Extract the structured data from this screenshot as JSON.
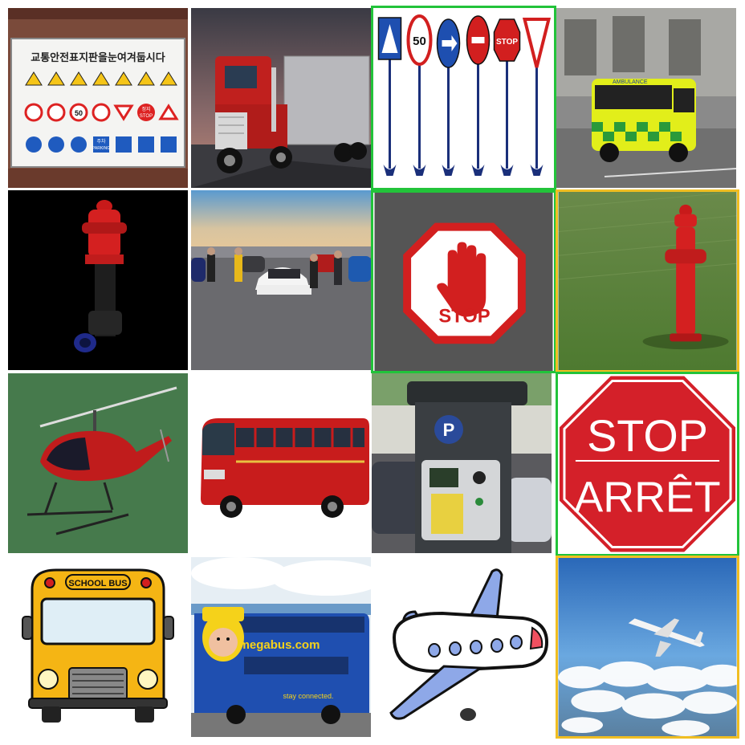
{
  "grid": {
    "rows": 4,
    "cols": 4,
    "selection_colors": {
      "green": "#22c33a",
      "yellow": "#f0be22"
    }
  },
  "tiles": [
    {
      "subject": "korean-traffic-sign-board",
      "selected": "none",
      "text": {
        "heading": "교통안전표지판을눈여겨둡시다",
        "speed": "50",
        "stop": "STOP",
        "stop_ko": "정지",
        "parking": "PARKING",
        "parking_ko": "주차"
      }
    },
    {
      "subject": "red-semi-truck",
      "selected": "none",
      "text": {}
    },
    {
      "subject": "road-sign-stakes",
      "selected": "green",
      "text": {
        "speed": "50",
        "stop": "STOP"
      }
    },
    {
      "subject": "ambulance",
      "selected": "none",
      "text": {
        "ambulance": "AMBULANCE"
      }
    },
    {
      "subject": "fire-hydrant-render",
      "selected": "none",
      "text": {}
    },
    {
      "subject": "people-with-cars",
      "selected": "none",
      "text": {}
    },
    {
      "subject": "hand-stop-sign",
      "selected": "green",
      "text": {
        "stop": "STOP"
      }
    },
    {
      "subject": "fire-hydrant-grass",
      "selected": "yellow",
      "text": {}
    },
    {
      "subject": "red-helicopter",
      "selected": "none",
      "text": {}
    },
    {
      "subject": "red-coach-bus",
      "selected": "none",
      "text": {}
    },
    {
      "subject": "parking-meter",
      "selected": "none",
      "text": {
        "p": "P"
      }
    },
    {
      "subject": "stop-arret-sign",
      "selected": "green",
      "text": {
        "stop": "STOP",
        "arret": "ARRÊT"
      }
    },
    {
      "subject": "school-bus-cartoon",
      "selected": "none",
      "text": {
        "school_bus": "SCHOOL BUS"
      }
    },
    {
      "subject": "megabus",
      "selected": "none",
      "text": {
        "brand": "megabus.com",
        "slogan": "stay connected."
      }
    },
    {
      "subject": "cartoon-airplane",
      "selected": "none",
      "text": {}
    },
    {
      "subject": "airplane-over-clouds",
      "selected": "yellow",
      "text": {}
    }
  ]
}
